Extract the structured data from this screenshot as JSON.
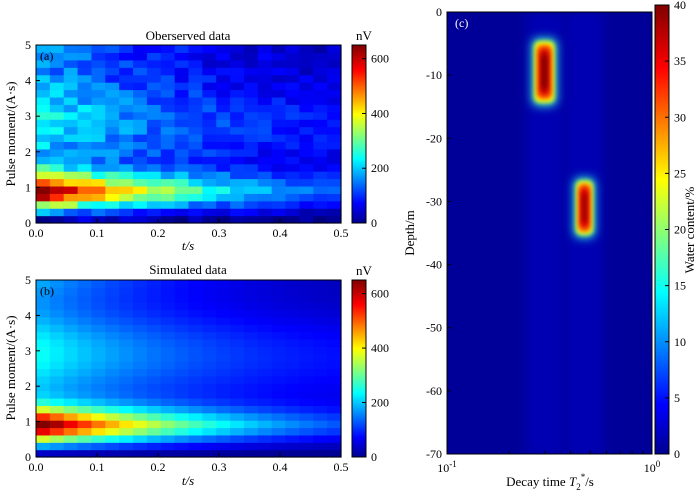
{
  "figure": {
    "panels": [
      {
        "label": "(a)",
        "title": "Oberserved data",
        "colorbar_unit": "nV"
      },
      {
        "label": "(b)",
        "title": "Simulated data",
        "colorbar_unit": "nV"
      },
      {
        "label": "(c)",
        "title": "",
        "colorbar_unit": ""
      }
    ]
  },
  "chart_data": [
    {
      "id": "a",
      "type": "heatmap",
      "title": "Oberserved data",
      "panel_label": "(a)",
      "xlabel": "t/s",
      "ylabel": "Pulse moment/(A·s)",
      "xlim": [
        0,
        0.5
      ],
      "ylim": [
        0,
        5
      ],
      "xticks": [
        0,
        0.1,
        0.2,
        0.3,
        0.4,
        0.5
      ],
      "xtick_labels": [
        "0.0",
        "0.1",
        "0.2",
        "0.3",
        "0.4",
        "0.5"
      ],
      "yticks": [
        0,
        1,
        2,
        3,
        4,
        5
      ],
      "ytick_labels": [
        "0",
        "1",
        "2",
        "3",
        "4",
        "5"
      ],
      "colorbar": {
        "label": "nV",
        "min": 0,
        "max": 650,
        "ticks": [
          0,
          200,
          400,
          600
        ],
        "tick_labels": [
          "0",
          "200",
          "400",
          "600"
        ],
        "colormap": "jet"
      },
      "grid_cols": 22,
      "grid_rows": 24,
      "model": {
        "amplitude_peak": 650,
        "peak_pulse_moment": 0.85,
        "decay_time_s": 0.28,
        "noise": true
      }
    },
    {
      "id": "b",
      "type": "heatmap",
      "title": "Simulated data",
      "panel_label": "(b)",
      "xlabel": "t/s",
      "ylabel": "Pulse moment/(A·s)",
      "xlim": [
        0,
        0.5
      ],
      "ylim": [
        0,
        5
      ],
      "xticks": [
        0,
        0.1,
        0.2,
        0.3,
        0.4,
        0.5
      ],
      "xtick_labels": [
        "0.0",
        "0.1",
        "0.2",
        "0.3",
        "0.4",
        "0.5"
      ],
      "yticks": [
        0,
        1,
        2,
        3,
        4,
        5
      ],
      "ytick_labels": [
        "0",
        "1",
        "2",
        "3",
        "4",
        "5"
      ],
      "colorbar": {
        "label": "nV",
        "min": 0,
        "max": 650,
        "ticks": [
          0,
          200,
          400,
          600
        ],
        "tick_labels": [
          "0",
          "200",
          "400",
          "600"
        ],
        "colormap": "jet"
      },
      "grid_cols": 22,
      "grid_rows": 24,
      "model": {
        "amplitude_peak": 650,
        "peak_pulse_moment": 0.85,
        "decay_time_s": 0.28,
        "noise": false
      }
    },
    {
      "id": "c",
      "type": "heatmap",
      "title": "",
      "panel_label": "(c)",
      "xlabel": "Decay time T2*/s",
      "xlabel_parts": [
        "Decay time ",
        "T",
        "2",
        "*",
        "/s"
      ],
      "ylabel": "Depth/m",
      "xscale": "log",
      "xlim": [
        0.1,
        1
      ],
      "xtick_labels": [
        "10",
        "-1",
        "10",
        "0"
      ],
      "ylim": [
        -70,
        0
      ],
      "yticks": [
        0,
        -10,
        -20,
        -30,
        -40,
        -50,
        -60,
        -70
      ],
      "ytick_labels": [
        "0",
        "-10",
        "-20",
        "-30",
        "-40",
        "-50",
        "-60",
        "-70"
      ],
      "colorbar": {
        "label": "Water content/%",
        "min": 0,
        "max": 40,
        "ticks": [
          0,
          5,
          10,
          15,
          20,
          25,
          30,
          35,
          40
        ],
        "tick_labels": [
          "0",
          "5",
          "10",
          "15",
          "20",
          "25",
          "30",
          "35",
          "40"
        ],
        "colormap": "jet"
      },
      "background_value": 1,
      "anomalies": [
        {
          "t2_center_s": 0.3,
          "t2_min_s": 0.27,
          "t2_max_s": 0.33,
          "depth_top_m": -5,
          "depth_bottom_m": -14,
          "peak_water_content_pct": 40
        },
        {
          "t2_center_s": 0.47,
          "t2_min_s": 0.43,
          "t2_max_s": 0.51,
          "depth_top_m": -27,
          "depth_bottom_m": -35,
          "peak_water_content_pct": 39
        }
      ]
    }
  ]
}
